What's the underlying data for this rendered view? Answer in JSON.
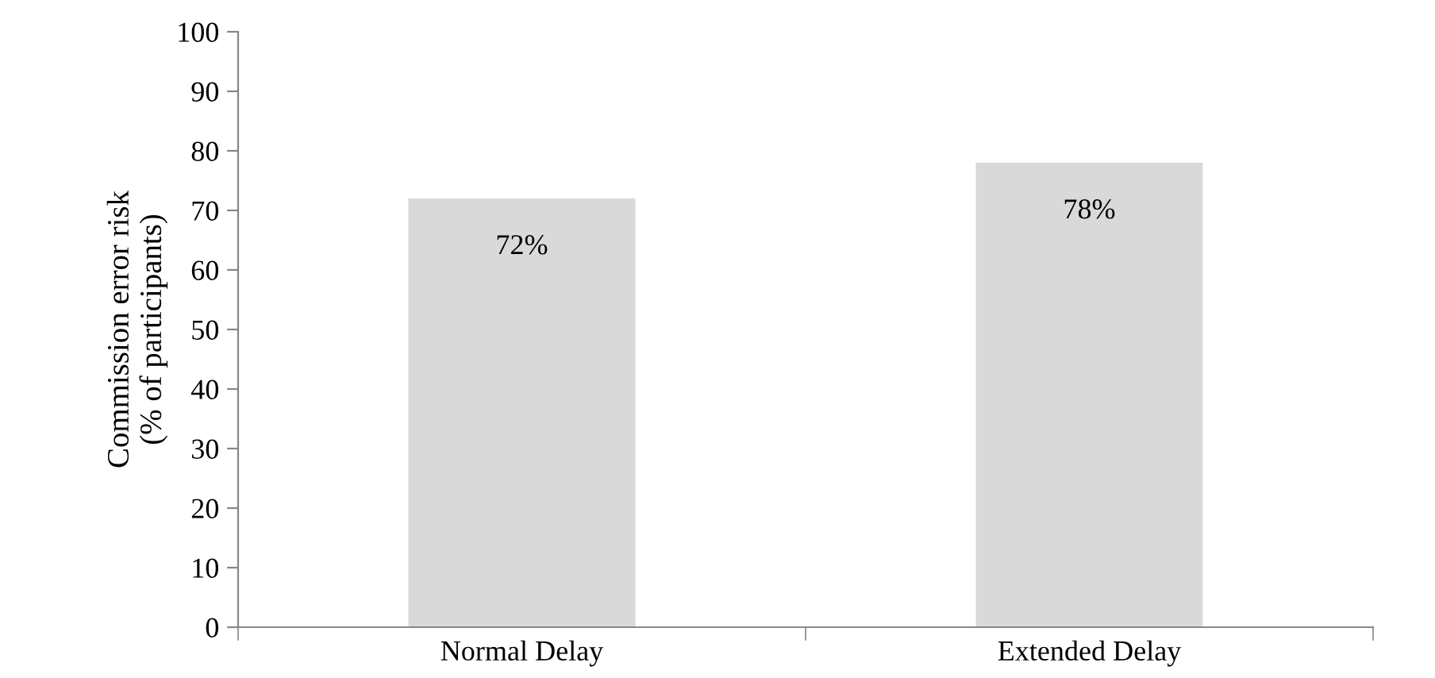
{
  "chart_data": {
    "type": "bar",
    "ylabel": "Commission error risk\n(% of participants)",
    "categories": [
      "Normal Delay",
      "Extended Delay"
    ],
    "values": [
      72,
      78
    ],
    "color": "#d9d9d9",
    "value_labels": [
      "72%",
      "78%"
    ],
    "ylim": [
      0,
      100
    ],
    "yticks": [
      0,
      10,
      20,
      30,
      40,
      50,
      60,
      70,
      80,
      90,
      100
    ],
    "grid": false,
    "legend": false
  }
}
